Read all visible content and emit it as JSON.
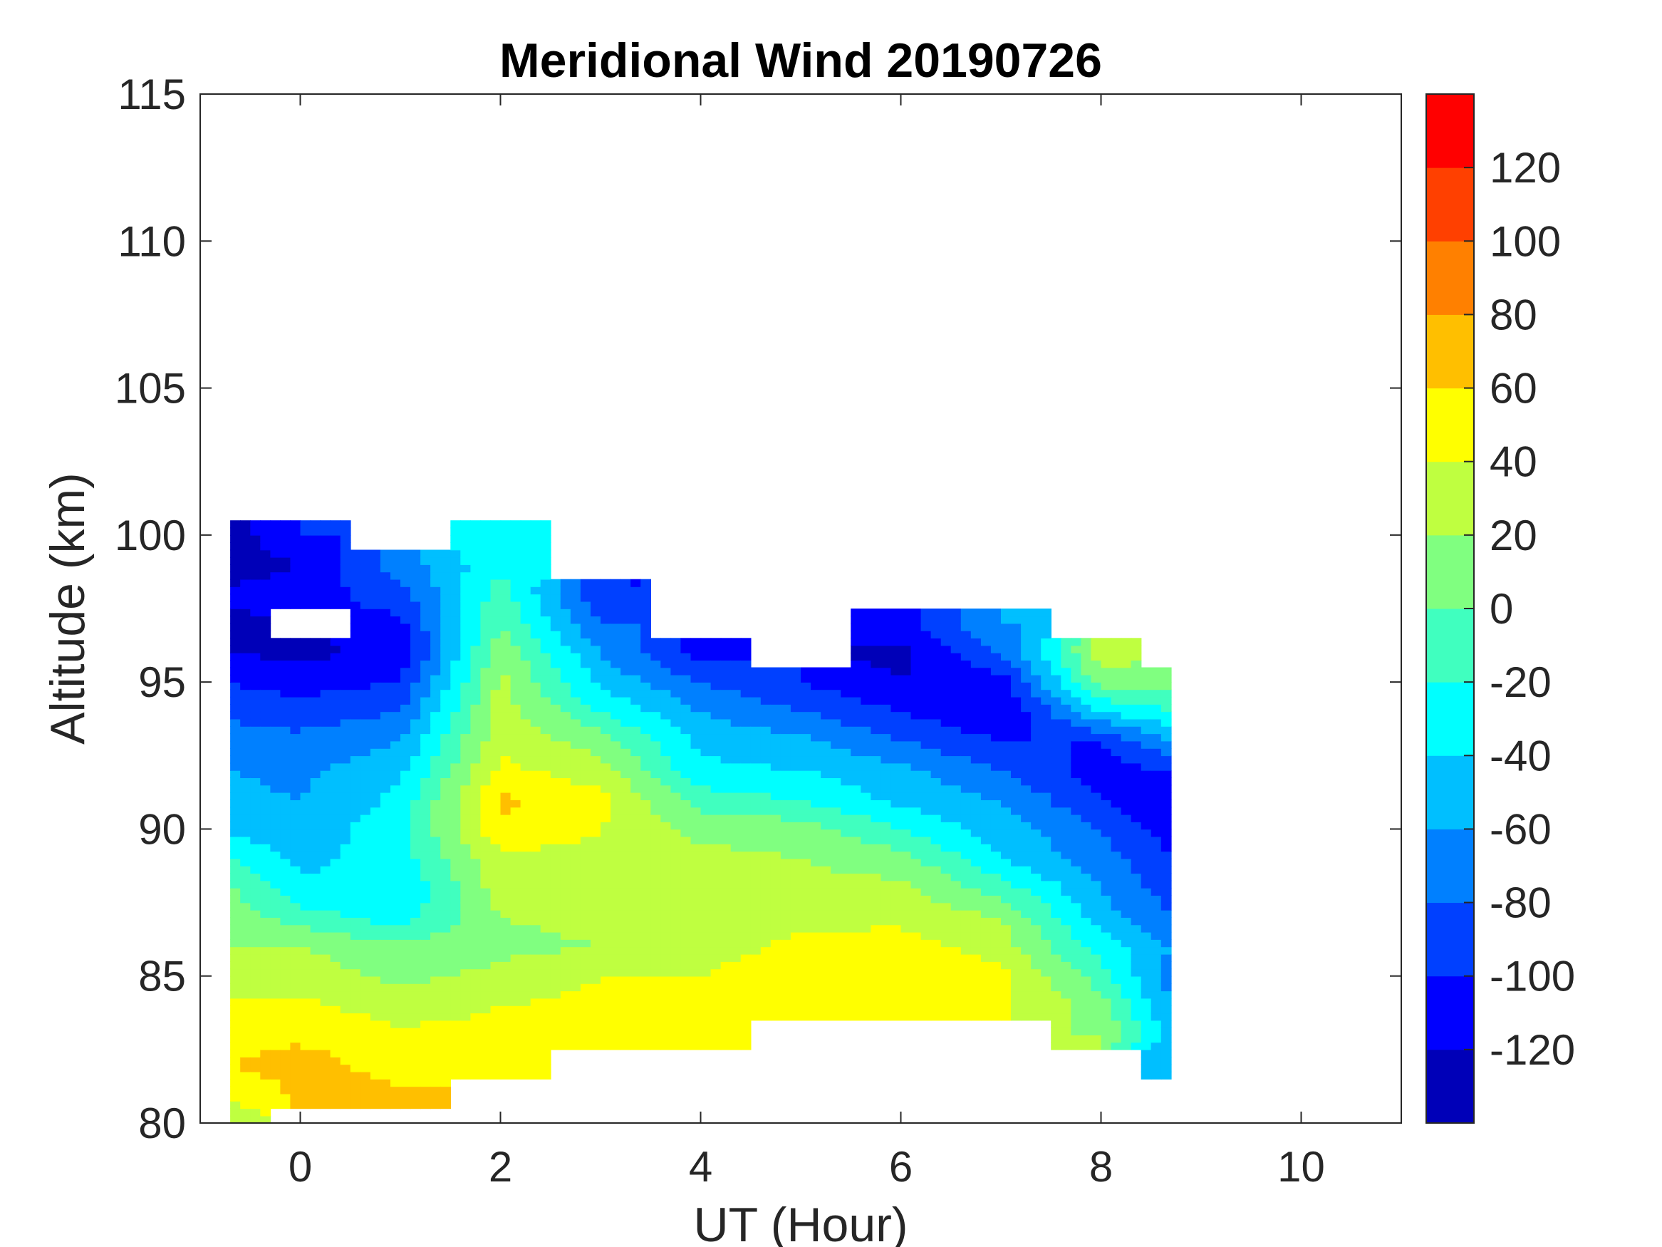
{
  "chart_data": {
    "type": "heatmap",
    "subtype": "filled-contour",
    "title": "Meridional Wind 20190726",
    "xlabel": "UT (Hour)",
    "ylabel": "Altitude (km)",
    "xlim": [
      -1,
      11
    ],
    "ylim": [
      80,
      115
    ],
    "xticks": [
      0,
      2,
      4,
      6,
      8,
      10
    ],
    "yticks": [
      80,
      85,
      90,
      95,
      100,
      105,
      110,
      115
    ],
    "colorbar": {
      "limits": [
        -140,
        140
      ],
      "ticks": [
        -120,
        -100,
        -80,
        -60,
        -40,
        -20,
        0,
        20,
        40,
        60,
        80,
        100,
        120
      ],
      "level_colors": [
        "#0000B8",
        "#0000FF",
        "#0040FF",
        "#0080FF",
        "#00BFFF",
        "#00FFFF",
        "#40FFBF",
        "#80FF80",
        "#BFFF40",
        "#FFFF00",
        "#FFBF00",
        "#FF8000",
        "#FF4000",
        "#FF0000"
      ]
    },
    "grid_x": [
      -0.7,
      0,
      1,
      2,
      3,
      4,
      5,
      6,
      7,
      8,
      8.7
    ],
    "grid_alt": [
      80,
      81,
      82,
      83,
      84,
      85,
      86,
      87,
      88,
      89,
      90,
      91,
      92,
      93,
      94,
      95,
      96,
      97,
      98,
      99,
      100,
      101
    ],
    "values_by_x": [
      [
        30,
        40,
        60,
        50,
        45,
        30,
        20,
        10,
        5,
        -20,
        -45,
        -55,
        -60,
        -70,
        -85,
        -100,
        -120,
        -125,
        -115,
        -130,
        -130,
        null
      ],
      [
        null,
        65,
        70,
        55,
        45,
        30,
        20,
        -10,
        -35,
        -45,
        -55,
        -60,
        -65,
        -75,
        -90,
        -110,
        -125,
        null,
        -110,
        -120,
        -100,
        null
      ],
      [
        null,
        65,
        50,
        45,
        30,
        15,
        5,
        -30,
        -40,
        -30,
        -25,
        -35,
        -45,
        -60,
        -80,
        -100,
        -115,
        -105,
        -90,
        -70,
        null,
        null
      ],
      [
        null,
        null,
        50,
        45,
        40,
        25,
        15,
        20,
        30,
        35,
        55,
        65,
        45,
        35,
        30,
        25,
        15,
        0,
        -10,
        -25,
        -30,
        null
      ],
      [
        null,
        null,
        null,
        50,
        45,
        40,
        20,
        25,
        35,
        35,
        40,
        45,
        30,
        10,
        -20,
        -45,
        -60,
        -80,
        -100,
        null,
        null,
        null
      ],
      [
        null,
        null,
        null,
        45,
        50,
        40,
        30,
        25,
        30,
        25,
        15,
        -10,
        -35,
        -45,
        -60,
        -80,
        -110,
        null,
        null,
        null,
        null,
        null
      ],
      [
        null,
        null,
        null,
        null,
        45,
        55,
        45,
        35,
        25,
        20,
        10,
        -20,
        -40,
        -55,
        -80,
        -100,
        null,
        null,
        null,
        null,
        null,
        null
      ],
      [
        null,
        null,
        null,
        null,
        40,
        60,
        50,
        35,
        25,
        10,
        -20,
        -45,
        -55,
        -80,
        -100,
        -120,
        -125,
        -110,
        null,
        null,
        null,
        null
      ],
      [
        null,
        null,
        null,
        null,
        45,
        45,
        30,
        20,
        -10,
        -40,
        -50,
        -60,
        -80,
        -100,
        -120,
        -110,
        -80,
        -60,
        null,
        null,
        null,
        null
      ],
      [
        null,
        null,
        null,
        20,
        10,
        -10,
        -30,
        -50,
        -60,
        -70,
        -80,
        -100,
        -110,
        -100,
        -40,
        10,
        30,
        null,
        null,
        null,
        null,
        null
      ],
      [
        null,
        null,
        -60,
        -50,
        -60,
        -70,
        -60,
        -80,
        -90,
        -100,
        -110,
        -120,
        -100,
        -60,
        -20,
        10,
        null,
        null,
        null,
        null,
        null,
        null
      ]
    ]
  }
}
